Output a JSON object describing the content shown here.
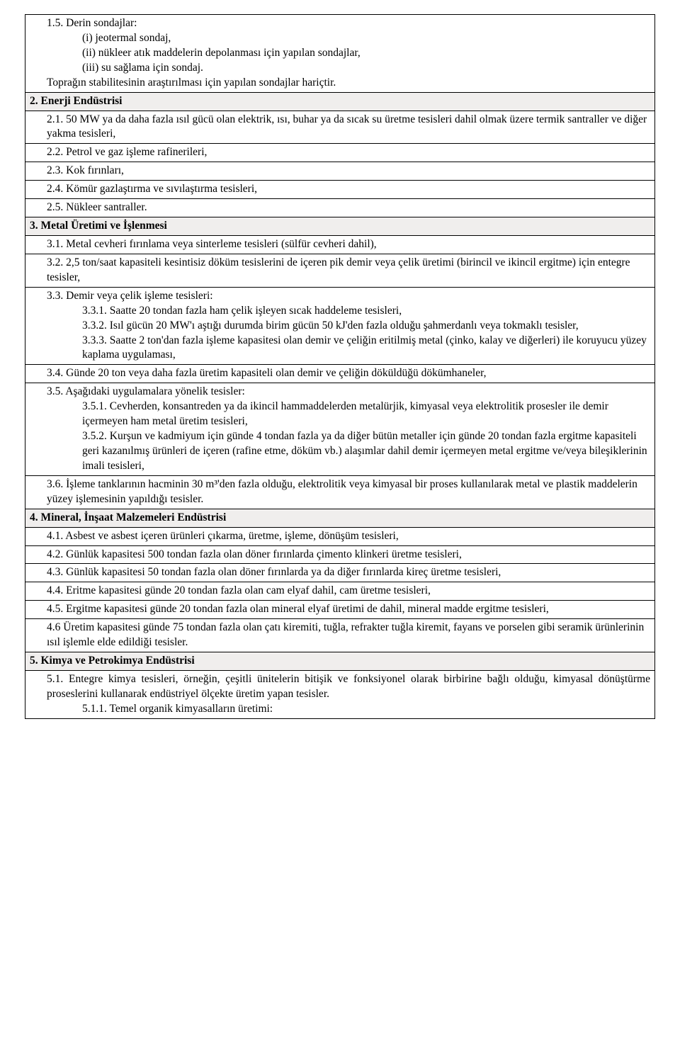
{
  "rows": [
    {
      "type": "multi",
      "lines": [
        {
          "cls": "indent1",
          "text": "1.5. Derin sondajlar:"
        },
        {
          "cls": "indent2",
          "text": "(i) jeotermal sondaj,"
        },
        {
          "cls": "indent2",
          "text": "(ii) nükleer atık maddelerin depolanması için yapılan sondajlar,"
        },
        {
          "cls": "indent2",
          "text": "(iii) su sağlama için sondaj."
        },
        {
          "cls": "indent1",
          "text": "Toprağın stabilitesinin araştırılması için yapılan sondajlar hariçtir."
        }
      ]
    },
    {
      "type": "header",
      "text": "2. Enerji Endüstrisi"
    },
    {
      "type": "single",
      "cls": "indent1",
      "text": "2.1. 50 MW ya da daha fazla ısıl gücü olan elektrik, ısı, buhar ya da sıcak su üretme tesisleri dahil olmak üzere termik santraller ve diğer yakma tesisleri,"
    },
    {
      "type": "single",
      "cls": "indent1",
      "text": "2.2. Petrol ve gaz işleme rafinerileri,"
    },
    {
      "type": "single",
      "cls": "indent1",
      "text": "2.3. Kok fırınları,"
    },
    {
      "type": "single",
      "cls": "indent1",
      "text": "2.4. Kömür gazlaştırma ve sıvılaştırma tesisleri,"
    },
    {
      "type": "single",
      "cls": "indent1",
      "text": "2.5. Nükleer santraller."
    },
    {
      "type": "header",
      "text": "3. Metal Üretimi ve İşlenmesi"
    },
    {
      "type": "single",
      "cls": "indent1",
      "text": "3.1. Metal cevheri fırınlama veya sinterleme tesisleri (sülfür cevheri dahil),"
    },
    {
      "type": "single",
      "cls": "indent1",
      "text": "3.2. 2,5 ton/saat kapasiteli kesintisiz döküm tesislerini de içeren pik demir veya çelik üretimi (birincil ve ikincil ergitme) için entegre tesisler,"
    },
    {
      "type": "multi",
      "lines": [
        {
          "cls": "indent1",
          "text": "3.3. Demir veya çelik işleme tesisleri:"
        },
        {
          "cls": "indent2",
          "text": "3.3.1. Saatte 20 tondan fazla ham çelik işleyen sıcak haddeleme tesisleri,"
        },
        {
          "cls": "indent2",
          "text": "3.3.2. Isıl gücün 20 MW'ı aştığı durumda birim gücün 50 kJ'den fazla olduğu şahmerdanlı veya tokmaklı tesisler,"
        },
        {
          "cls": "indent2",
          "text": "3.3.3. Saatte 2 ton'dan fazla işleme kapasitesi olan demir ve çeliğin eritilmiş metal (çinko, kalay ve diğerleri) ile koruyucu yüzey kaplama uygulaması,"
        }
      ]
    },
    {
      "type": "single",
      "cls": "indent1",
      "text": "3.4. Günde 20 ton veya daha fazla üretim kapasiteli olan demir ve çeliğin döküldüğü dökümhaneler,"
    },
    {
      "type": "multi",
      "lines": [
        {
          "cls": "indent1",
          "text": "3.5. Aşağıdaki uygulamalara yönelik tesisler:"
        },
        {
          "cls": "indent2",
          "text": "3.5.1. Cevherden, konsantreden ya da ikincil hammaddelerden metalürjik, kimyasal veya elektrolitik prosesler ile demir içermeyen ham metal üretim tesisleri,"
        },
        {
          "cls": "indent2",
          "text": "3.5.2. Kurşun ve kadmiyum için günde 4 tondan fazla ya da diğer bütün metaller için günde 20 tondan fazla ergitme kapasiteli geri kazanılmış ürünleri de içeren (rafine etme, döküm vb.) alaşımlar dahil demir içermeyen metal ergitme ve/veya bileşiklerinin imali tesisleri,"
        }
      ]
    },
    {
      "type": "single",
      "cls": "indent1",
      "text": "3.6. İşleme tanklarının hacminin 30 m³'den fazla olduğu, elektrolitik veya kimyasal bir proses kullanılarak metal ve plastik maddelerin yüzey işlemesinin yapıldığı tesisler."
    },
    {
      "type": "header",
      "text": "4. Mineral, İnşaat Malzemeleri Endüstrisi"
    },
    {
      "type": "single",
      "cls": "indent1",
      "text": "4.1. Asbest ve asbest içeren ürünleri çıkarma, üretme, işleme, dönüşüm tesisleri,"
    },
    {
      "type": "single",
      "cls": "indent1",
      "text": "4.2. Günlük kapasitesi 500 tondan fazla olan döner fırınlarda çimento klinkeri üretme tesisleri,"
    },
    {
      "type": "single",
      "cls": "indent1",
      "text": "4.3. Günlük kapasitesi 50 tondan fazla olan döner fırınlarda ya da diğer fırınlarda kireç üretme tesisleri,"
    },
    {
      "type": "single",
      "cls": "indent1",
      "text": "4.4. Eritme kapasitesi günde 20 tondan fazla olan cam elyaf dahil, cam üretme tesisleri,"
    },
    {
      "type": "single",
      "cls": "indent1",
      "text": "4.5. Ergitme kapasitesi günde 20 tondan fazla olan mineral elyaf üretimi de dahil, mineral madde ergitme tesisleri,"
    },
    {
      "type": "single",
      "cls": "indent1",
      "text": "4.6 Üretim kapasitesi günde 75 tondan fazla olan çatı kiremiti, tuğla, refrakter tuğla kiremit, fayans ve porselen gibi seramik ürünlerinin ısıl işlemle elde edildiği tesisler."
    },
    {
      "type": "header",
      "text": "5. Kimya ve Petrokimya Endüstrisi"
    },
    {
      "type": "multi",
      "lines": [
        {
          "cls": "indent1 justify",
          "text": "5.1. Entegre kimya tesisleri, örneğin, çeşitli ünitelerin bitişik ve fonksiyonel olarak birbirine bağlı olduğu, kimyasal dönüştürme proseslerini kullanarak endüstriyel ölçekte üretim yapan tesisler."
        },
        {
          "cls": "indent2",
          "text": "5.1.1. Temel organik kimyasalların üretimi:"
        }
      ]
    }
  ]
}
